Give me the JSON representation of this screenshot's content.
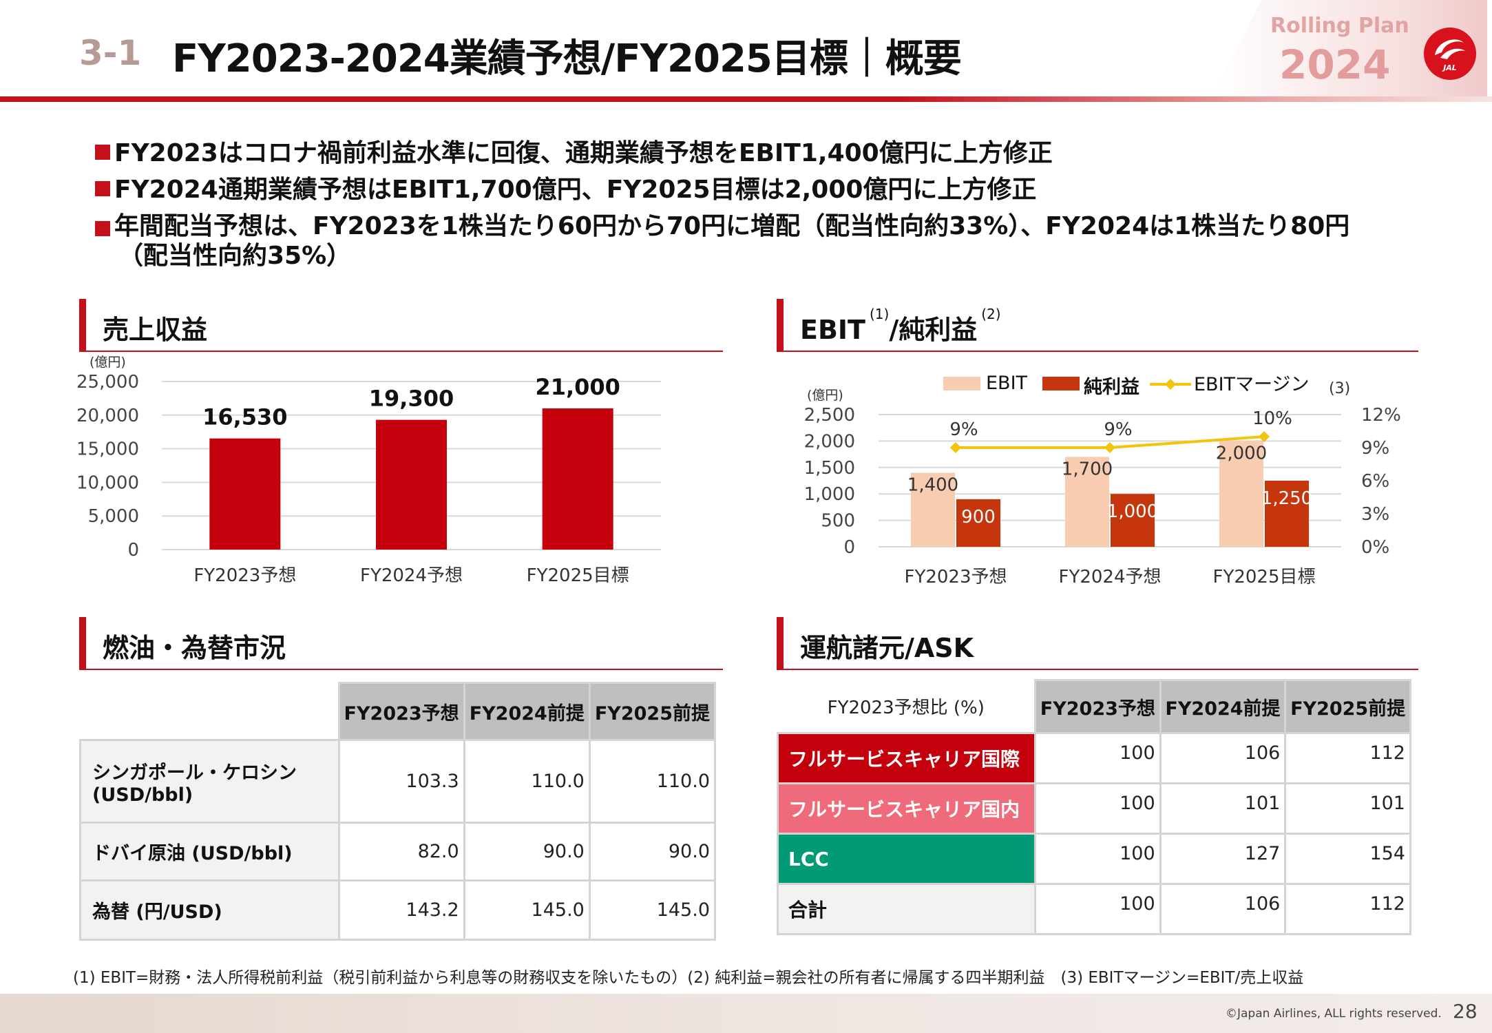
{
  "header": {
    "section_number": "3-1",
    "title": "FY2023-2024業績予想/FY2025目標｜概要",
    "rolling_plan_label": "Rolling Plan",
    "rolling_plan_year": "2024",
    "logo_text": "JAL",
    "accent_color": "#c4101b"
  },
  "bullets": [
    "FY2023はコロナ禍前利益水準に回復、通期業績予想をEBIT1,400億円に上方修正",
    "FY2024通期業績予想はEBIT1,700億円、FY2025目標は2,000億円に上方修正",
    "年間配当予想は、FY2023を1株当たり60円から70円に増配（配当性向約33%）、FY2024は1株当たり80円",
    "（配当性向約35%）"
  ],
  "revenue_section": {
    "title": "売上収益"
  },
  "ebit_section": {
    "title": "EBIT",
    "sup1": "(1)",
    "title2": "/純利益",
    "sup2": "(2)"
  },
  "fuel_section": {
    "title": "燃油・為替市況"
  },
  "ask_section": {
    "title": "運航諸元/ASK"
  },
  "chart_data": [
    {
      "type": "bar",
      "title": "売上収益",
      "unit_label": "(億円)",
      "categories": [
        "FY2023予想",
        "FY2024予想",
        "FY2025目標"
      ],
      "values": [
        16530,
        19300,
        21000
      ],
      "data_labels": [
        "16,530",
        "19,300",
        "21,000"
      ],
      "ylim": [
        0,
        25000
      ],
      "yticks": [
        "25,000",
        "20,000",
        "15,000",
        "10,000",
        "5,000",
        "0"
      ],
      "color": "#c4000d"
    },
    {
      "type": "bar",
      "title": "EBIT/純利益",
      "unit_label": "(億円)",
      "categories": [
        "FY2023予想",
        "FY2024予想",
        "FY2025目標"
      ],
      "series": [
        {
          "name": "EBIT",
          "values": [
            1400,
            1700,
            2000
          ],
          "labels": [
            "1,400",
            "1,700",
            "2,000"
          ],
          "color": "#f7ccb0"
        },
        {
          "name": "純利益",
          "values": [
            900,
            1000,
            1250
          ],
          "labels": [
            "900",
            "1,000",
            "1,250"
          ],
          "color": "#c5360c"
        },
        {
          "name": "EBITマージン",
          "name_suffix": "(3)",
          "type": "line",
          "axis": "right",
          "values": [
            9,
            9,
            10
          ],
          "labels": [
            "9%",
            "9%",
            "10%"
          ],
          "color": "#f2c40b"
        }
      ],
      "ylim": [
        0,
        2500
      ],
      "yticks": [
        "2,500",
        "2,000",
        "1,500",
        "1,000",
        "500",
        "0"
      ],
      "ylim_right": [
        0,
        12
      ],
      "yticks_right": [
        "12%",
        "9%",
        "6%",
        "3%",
        "0%"
      ]
    }
  ],
  "fuel_table": {
    "columns": [
      "FY2023予想",
      "FY2024前提",
      "FY2025前提"
    ],
    "rows": [
      {
        "label_line1": "シンガポール・ケロシン",
        "label_line2": "(USD/bbl)",
        "values": [
          "103.3",
          "110.0",
          "110.0"
        ]
      },
      {
        "label_line1": "ドバイ原油 (USD/bbl)",
        "label_line2": "",
        "values": [
          "82.0",
          "90.0",
          "90.0"
        ]
      },
      {
        "label_line1": "為替 (円/USD)",
        "label_line2": "",
        "values": [
          "143.2",
          "145.0",
          "145.0"
        ]
      }
    ]
  },
  "ask_table": {
    "note": "FY2023予想比 (%)",
    "columns": [
      "FY2023予想",
      "FY2024前提",
      "FY2025前提"
    ],
    "rows": [
      {
        "label": "フルサービスキャリア国際",
        "color": "#c4000d",
        "text_color": "#ffffff",
        "values": [
          "100",
          "106",
          "112"
        ]
      },
      {
        "label": "フルサービスキャリア国内",
        "color": "#ef6a7b",
        "text_color": "#ffffff",
        "values": [
          "100",
          "101",
          "101"
        ]
      },
      {
        "label": "LCC",
        "color": "#009b76",
        "text_color": "#ffffff",
        "values": [
          "100",
          "127",
          "154"
        ]
      },
      {
        "label": "合計",
        "color": "#f2f2f2",
        "text_color": "#111111",
        "values": [
          "100",
          "106",
          "112"
        ]
      }
    ]
  },
  "footnote": "(1) EBIT=財務・法人所得税前利益（税引前利益から利息等の財務収支を除いたもの）(2) 純利益=親会社の所有者に帰属する四半期利益　(3) EBITマージン=EBIT/売上収益",
  "footer": {
    "copyright": "©Japan Airlines, ALL rights reserved.",
    "page_number": "28"
  }
}
